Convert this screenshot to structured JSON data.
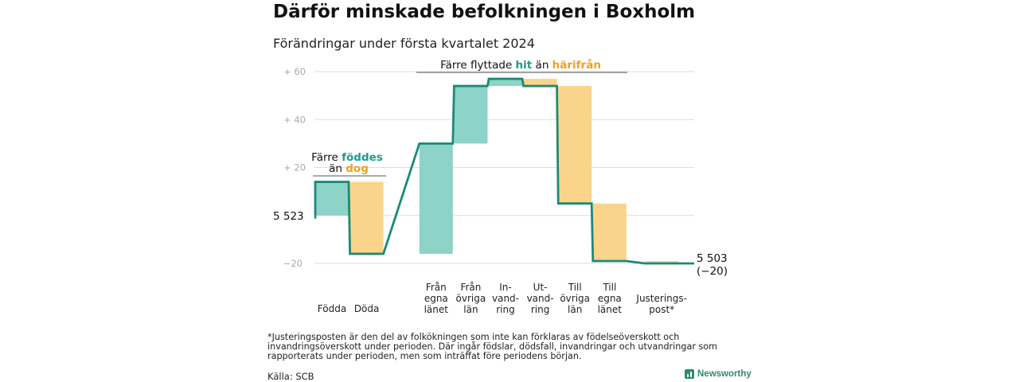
{
  "title": "Därför minskade befolkningen i Boxholm",
  "subtitle": "Förändringar under första kvartalet 2024",
  "colors": {
    "positive": "#8dd3c7",
    "negative": "#fad48b",
    "line": "#1a8a78",
    "accent_teal": "#1a9e8a",
    "accent_orange": "#f0a020",
    "grid": "#dddddd",
    "tick": "#aaaaaa"
  },
  "chart_data": {
    "type": "waterfall",
    "start_label": "5 523",
    "start_value": 5523,
    "end_value": 5503,
    "end_label_1": "5 503",
    "end_label_2": "(−20)",
    "ylim": [
      -20,
      60
    ],
    "y_ticks": [
      {
        "value": 60,
        "label": "+  60"
      },
      {
        "value": 40,
        "label": "+  40"
      },
      {
        "value": 20,
        "label": "+  20"
      },
      {
        "value": -20,
        "label": "−20"
      }
    ],
    "steps": [
      {
        "category": [
          "Födda"
        ],
        "from": 0,
        "to": 14,
        "slot": 0
      },
      {
        "category": [
          "Döda"
        ],
        "from": 14,
        "to": -16,
        "slot": 1
      },
      {
        "category": [
          "Från",
          "egna",
          "länet"
        ],
        "from": -16,
        "to": 30,
        "slot": 3
      },
      {
        "category": [
          "Från",
          "övriga",
          "län"
        ],
        "from": 30,
        "to": 54,
        "slot": 4
      },
      {
        "category": [
          "In-",
          "vand-",
          "ring"
        ],
        "from": 54,
        "to": 57,
        "slot": 5
      },
      {
        "category": [
          "Ut-",
          "vand-",
          "ring"
        ],
        "from": 57,
        "to": 54,
        "slot": 6
      },
      {
        "category": [
          "Till",
          "övriga",
          "län"
        ],
        "from": 54,
        "to": 5,
        "slot": 7
      },
      {
        "category": [
          "Till",
          "egna",
          "länet"
        ],
        "from": 5,
        "to": -19,
        "slot": 8
      },
      {
        "category": [
          "Justerings-",
          "post*"
        ],
        "from": -19,
        "to": -20,
        "slot": 9.5
      }
    ],
    "annotations": {
      "left": {
        "line1_prefix": "Färre ",
        "line1_highlight": "föddes",
        "line2_prefix": "än ",
        "line2_highlight": "dog"
      },
      "right": {
        "prefix": "Färre flyttade ",
        "highlight1": "hit",
        "middle": "  än ",
        "highlight2": "härifrån"
      }
    }
  },
  "footnote": "*Justeringsposten är den del av folkökningen som inte kan förklaras av födelseöverskott och invandringsöverskott under perioden. Där ingår födslar, dödsfall, invandringar och utvandringar som rapporterats under perioden, men som inträffat före periodens början.",
  "source": "Källa: SCB",
  "brand": "Newsworthy"
}
